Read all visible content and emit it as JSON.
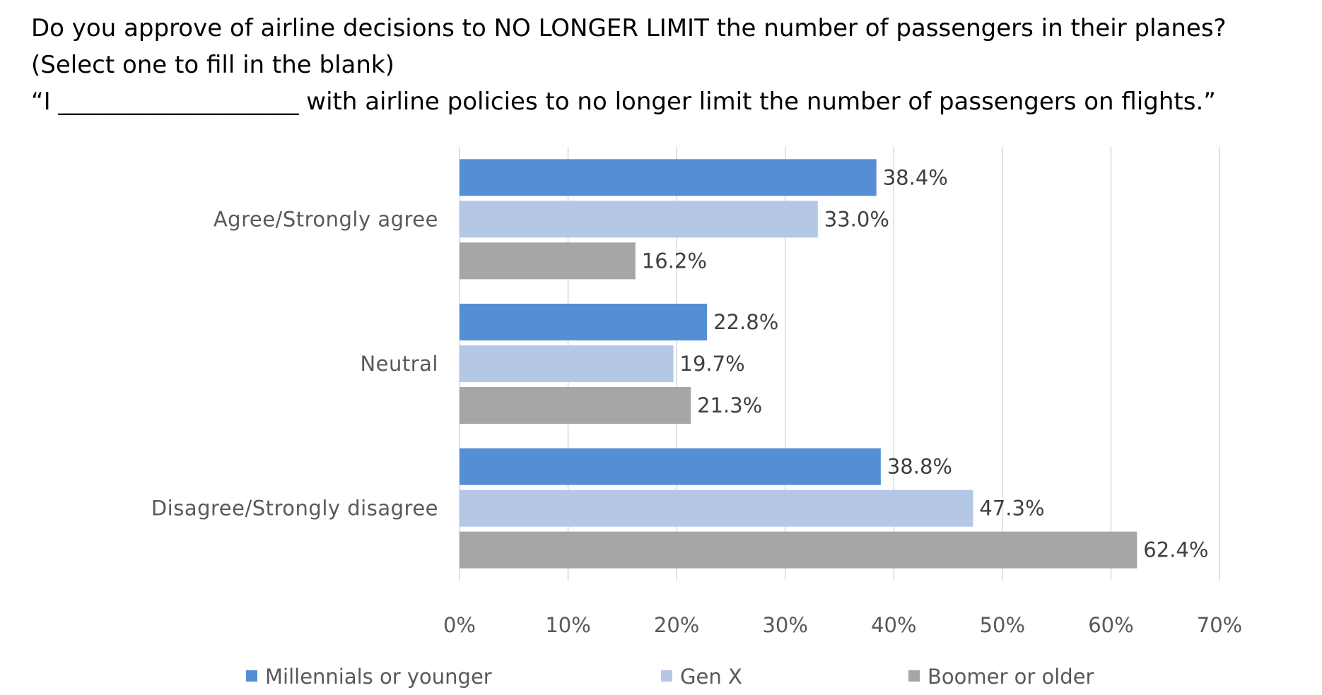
{
  "title_lines": [
    "Do you approve of airline decisions to NO LONGER LIMIT the number of passengers in their planes?",
    "(Select one to fill in the blank)",
    "“I ____________________ with airline policies to no longer limit the number of passengers on flights.”"
  ],
  "chart_data": {
    "type": "bar",
    "orientation": "horizontal",
    "categories": [
      "Agree/Strongly agree",
      "Neutral",
      "Disagree/Strongly disagree"
    ],
    "series": [
      {
        "name": "Millennials or younger",
        "color": "#558ED5",
        "values": [
          38.4,
          22.8,
          38.8
        ],
        "labels": [
          "38.4%",
          "22.8%",
          "38.8%"
        ]
      },
      {
        "name": "Gen X",
        "color": "#B4C7E7",
        "values": [
          33.0,
          19.7,
          47.3
        ],
        "labels": [
          "33.0%",
          "19.7%",
          "47.3%"
        ]
      },
      {
        "name": "Boomer or older",
        "color": "#A6A6A6",
        "values": [
          16.2,
          21.3,
          62.4
        ],
        "labels": [
          "16.2%",
          "21.3%",
          "62.4%"
        ]
      }
    ],
    "xlim": [
      0,
      70
    ],
    "x_ticks": [
      "0%",
      "10%",
      "20%",
      "30%",
      "40%",
      "50%",
      "60%",
      "70%"
    ],
    "grid": true,
    "legend_position": "bottom",
    "gridline_color": "#D9D9D9"
  }
}
